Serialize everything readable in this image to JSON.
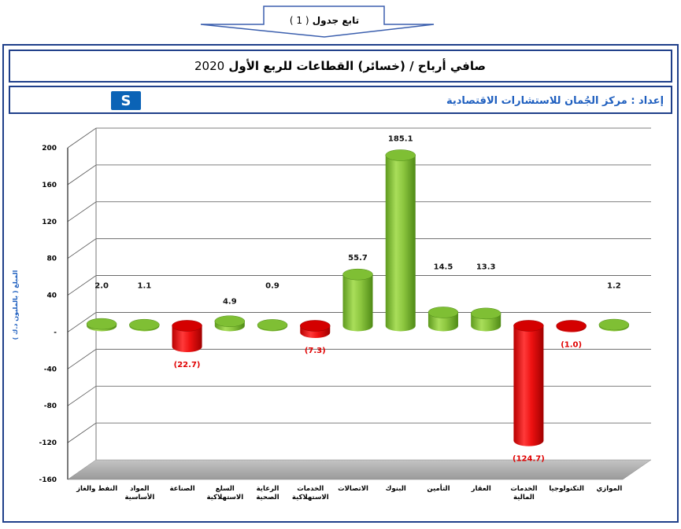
{
  "banner": {
    "label": "تابع جدول",
    "number": "( 1 )"
  },
  "title": {
    "text": "صافي أرباح / (خسائر) القطاعات للربع الأول",
    "year": "2020"
  },
  "credit": {
    "text": "إعداد : مركز الجُمان للاستشارات الاقتصادية",
    "logo_icon": "aljoman-logo-icon"
  },
  "chart_data": {
    "type": "bar",
    "ylabel": "المبلغ ( بالمليون د.ك )",
    "ylim": [
      -160,
      200
    ],
    "yticks": [
      200,
      160,
      120,
      80,
      40,
      0,
      -40,
      -80,
      -120,
      -160
    ],
    "zero_tick_label": "-",
    "categories": [
      "النفط والغاز",
      "المواد الأساسية",
      "الصناعة",
      "السلع الاستهلاكية",
      "الرعاية الصحية",
      "الخدمات الاستهلاكية",
      "الاتصالات",
      "البنوك",
      "التأمين",
      "العقار",
      "الخدمات المالية",
      "التكنولوجيا",
      "الموازي"
    ],
    "category_lines": [
      [
        "النفط والغاز"
      ],
      [
        "المواد",
        "الأساسية"
      ],
      [
        "الصناعة"
      ],
      [
        "السلع",
        "الاستهلاكية"
      ],
      [
        "الرعاية",
        "الصحية"
      ],
      [
        "الخدمات",
        "الاستهلاكية"
      ],
      [
        "الاتصالات"
      ],
      [
        "البنوك"
      ],
      [
        "التأمين"
      ],
      [
        "العقار"
      ],
      [
        "الخدمات",
        "المالية"
      ],
      [
        "التكنولوجيا"
      ],
      [
        "الموازي"
      ]
    ],
    "values": [
      2.0,
      1.1,
      -22.7,
      4.9,
      0.9,
      -7.3,
      55.7,
      185.1,
      14.5,
      13.3,
      -124.7,
      -1.0,
      1.2
    ],
    "data_labels": [
      "2.0",
      "1.1",
      "(22.7)",
      "4.9",
      "0.9",
      "(7.3)",
      "55.7",
      "185.1",
      "14.5",
      "13.3",
      "(124.7)",
      "(1.0)",
      "1.2"
    ],
    "colors": {
      "positive": "#8cc63f",
      "negative": "#ee1111",
      "positive_label": "#111111",
      "negative_label": "#e00000"
    },
    "grid": true,
    "legend": "none"
  }
}
